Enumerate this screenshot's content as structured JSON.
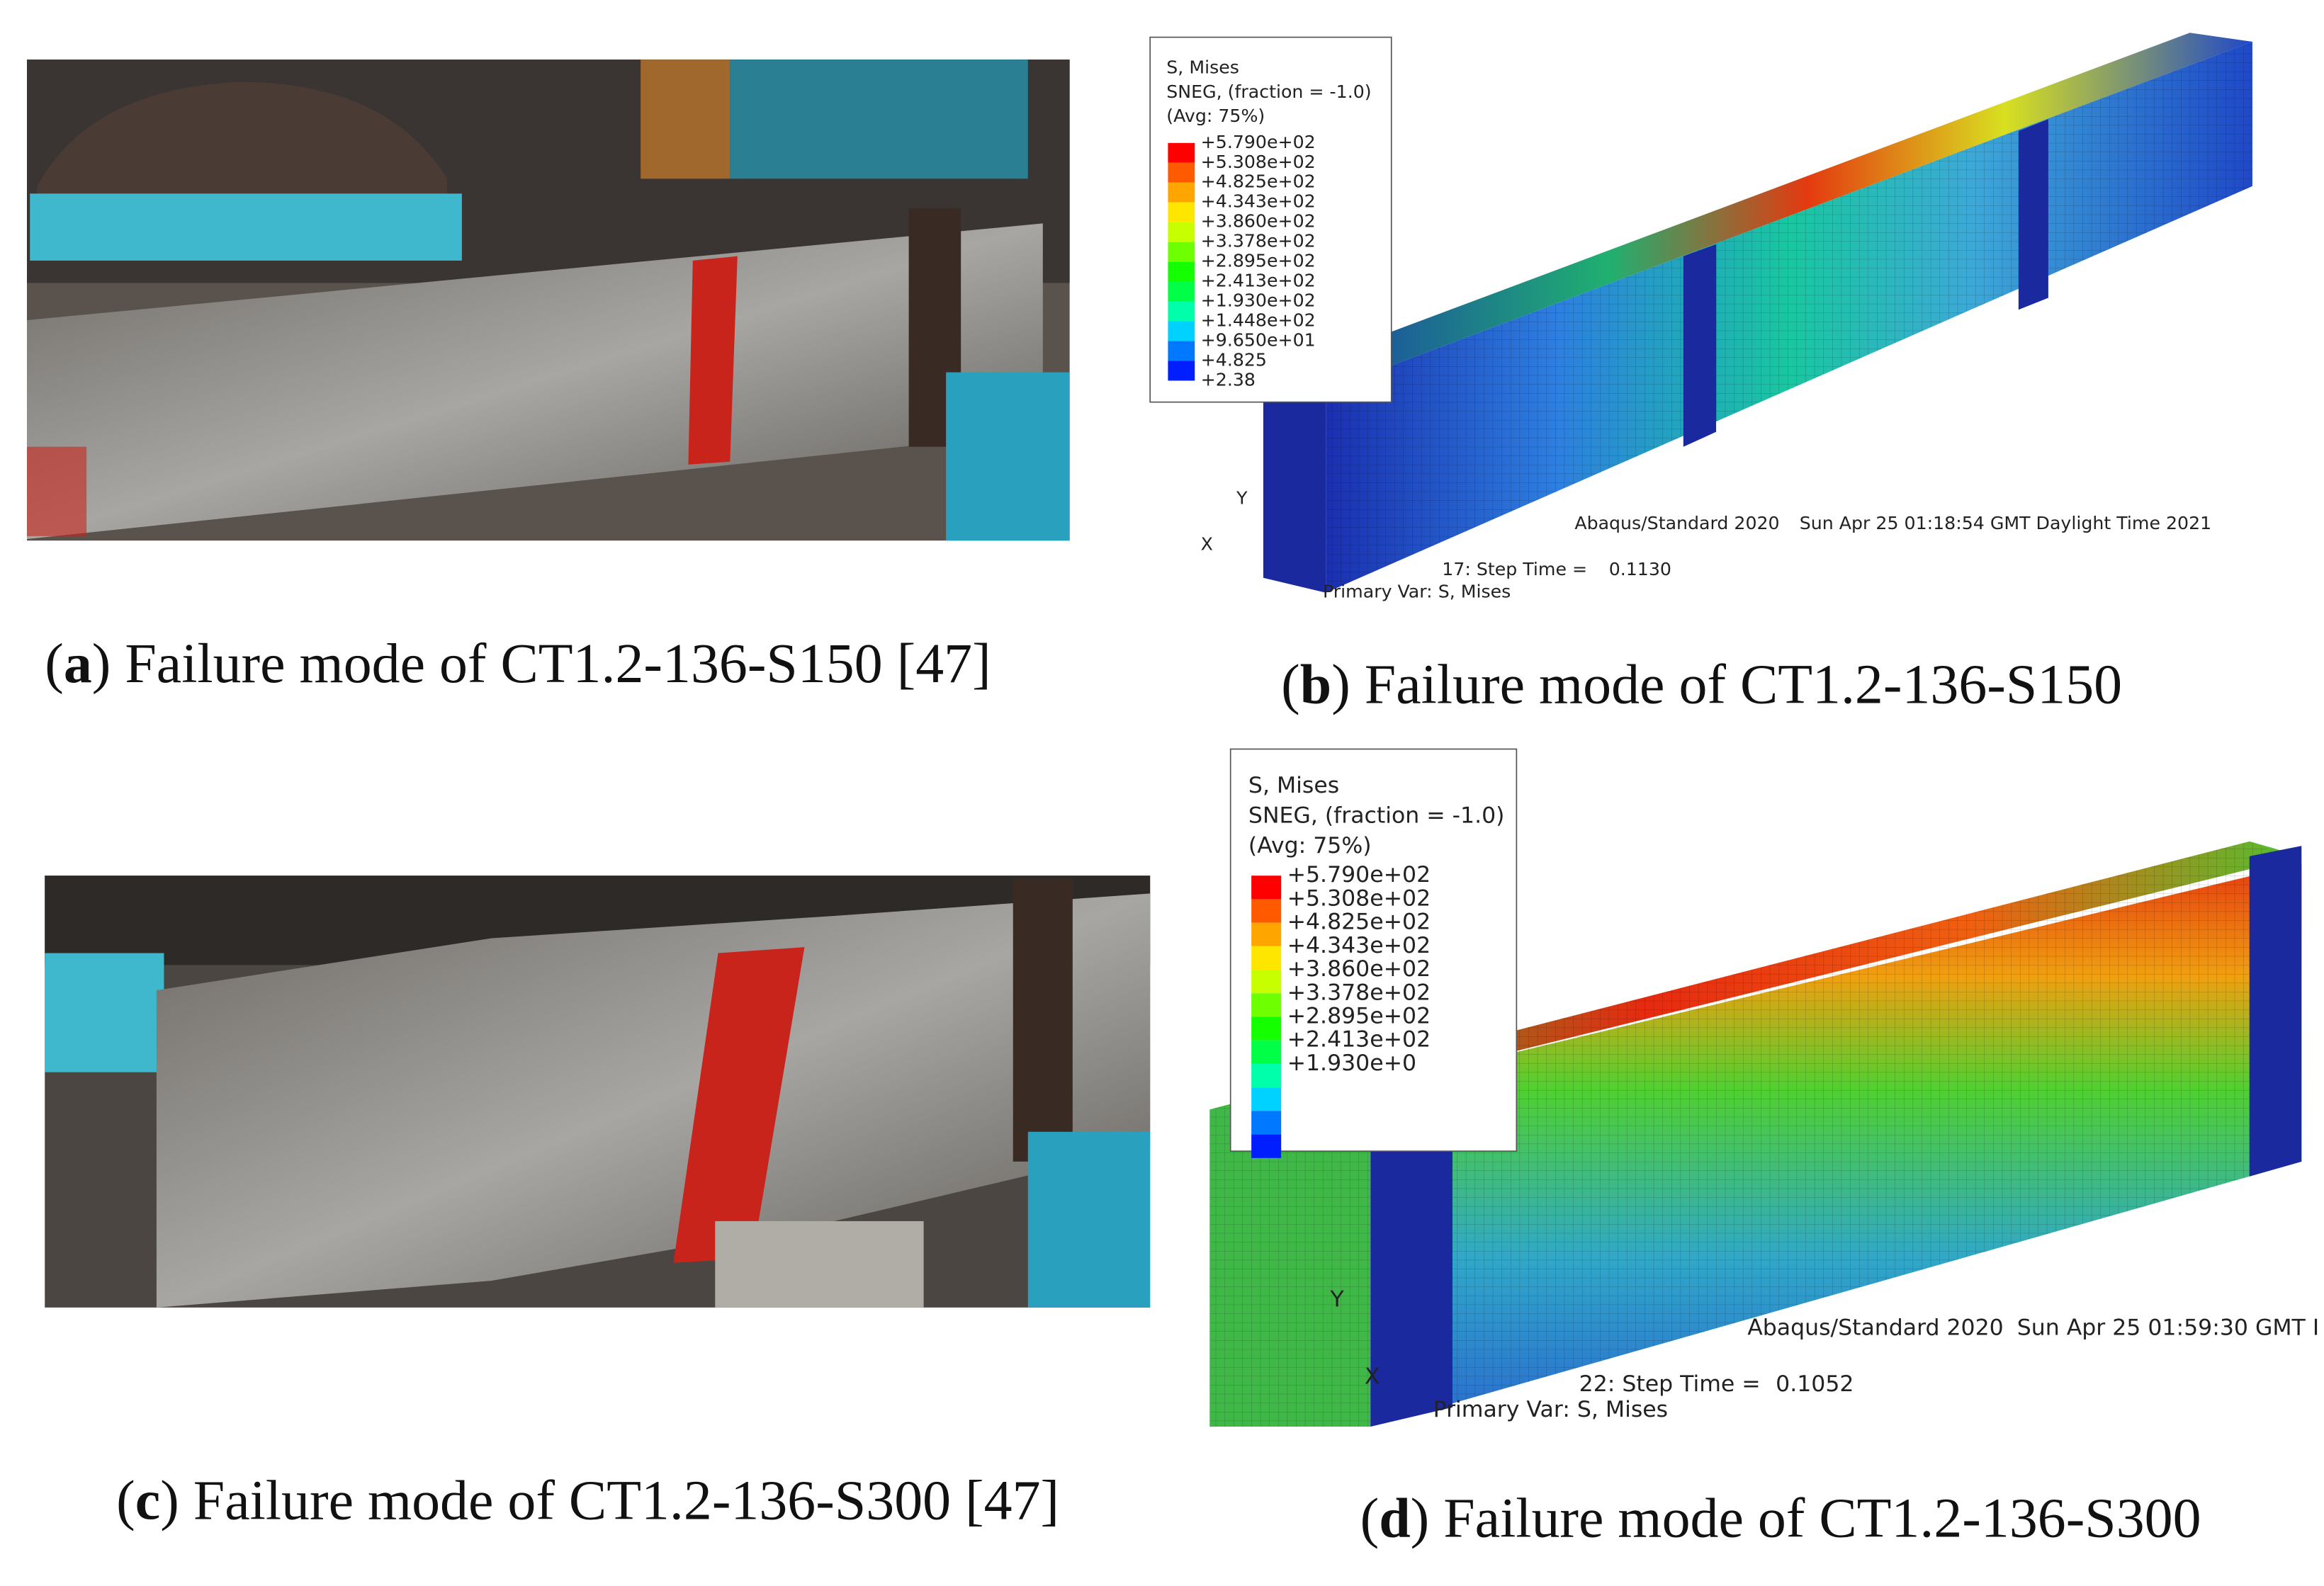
{
  "panels": [
    {
      "caption": [
        "(",
        "a",
        ") Failure mode of CT1.2-136-S150 [47]"
      ]
    },
    {
      "caption": [
        "(",
        "b",
        ") Failure mode of CT1.2-136-S150"
      ],
      "legend": {
        "title": [
          "S, Mises",
          "SNEG, (fraction = -1.0)",
          "(Avg: 75%)"
        ],
        "levels": [
          "+5.790e+02",
          "+5.308e+02",
          "+4.825e+02",
          "+4.343e+02",
          "+3.860e+02",
          "+3.378e+02",
          "+2.895e+02",
          "+2.413e+02",
          "+1.930e+02",
          "+1.448e+02",
          "+9.650e+01",
          "+4.825",
          "+2.38"
        ]
      },
      "triad": [
        "Y",
        "X"
      ],
      "info": [
        "Abaqus/Standard 2020",
        "Sun Apr 25 01:18:54 GMT Daylight Time 2021",
        "17: Step Time =",
        "0.1130",
        "Primary Var: S, Mises"
      ]
    },
    {
      "caption": [
        "(",
        "c",
        ") Failure mode of CT1.2-136-S300 [47]"
      ]
    },
    {
      "caption": [
        "(",
        "d",
        ") Failure mode of CT1.2-136-S300"
      ],
      "legend": {
        "title": [
          "S, Mises",
          "SNEG, (fraction = -1.0)",
          "(Avg: 75%)"
        ],
        "levels": [
          "+5.790e+02",
          "+5.308e+02",
          "+4.825e+02",
          "+4.343e+02",
          "+3.860e+02",
          "+3.378e+02",
          "+2.895e+02",
          "+2.413e+02",
          "+1.930e+0"
        ]
      },
      "triad": [
        "Y",
        "X"
      ],
      "info": [
        "Abaqus/Standard 2020",
        "Sun Apr 25 01:59:30 GMT I",
        "22: Step Time =",
        "0.1052",
        "Primary Var: S, Mises"
      ]
    }
  ]
}
